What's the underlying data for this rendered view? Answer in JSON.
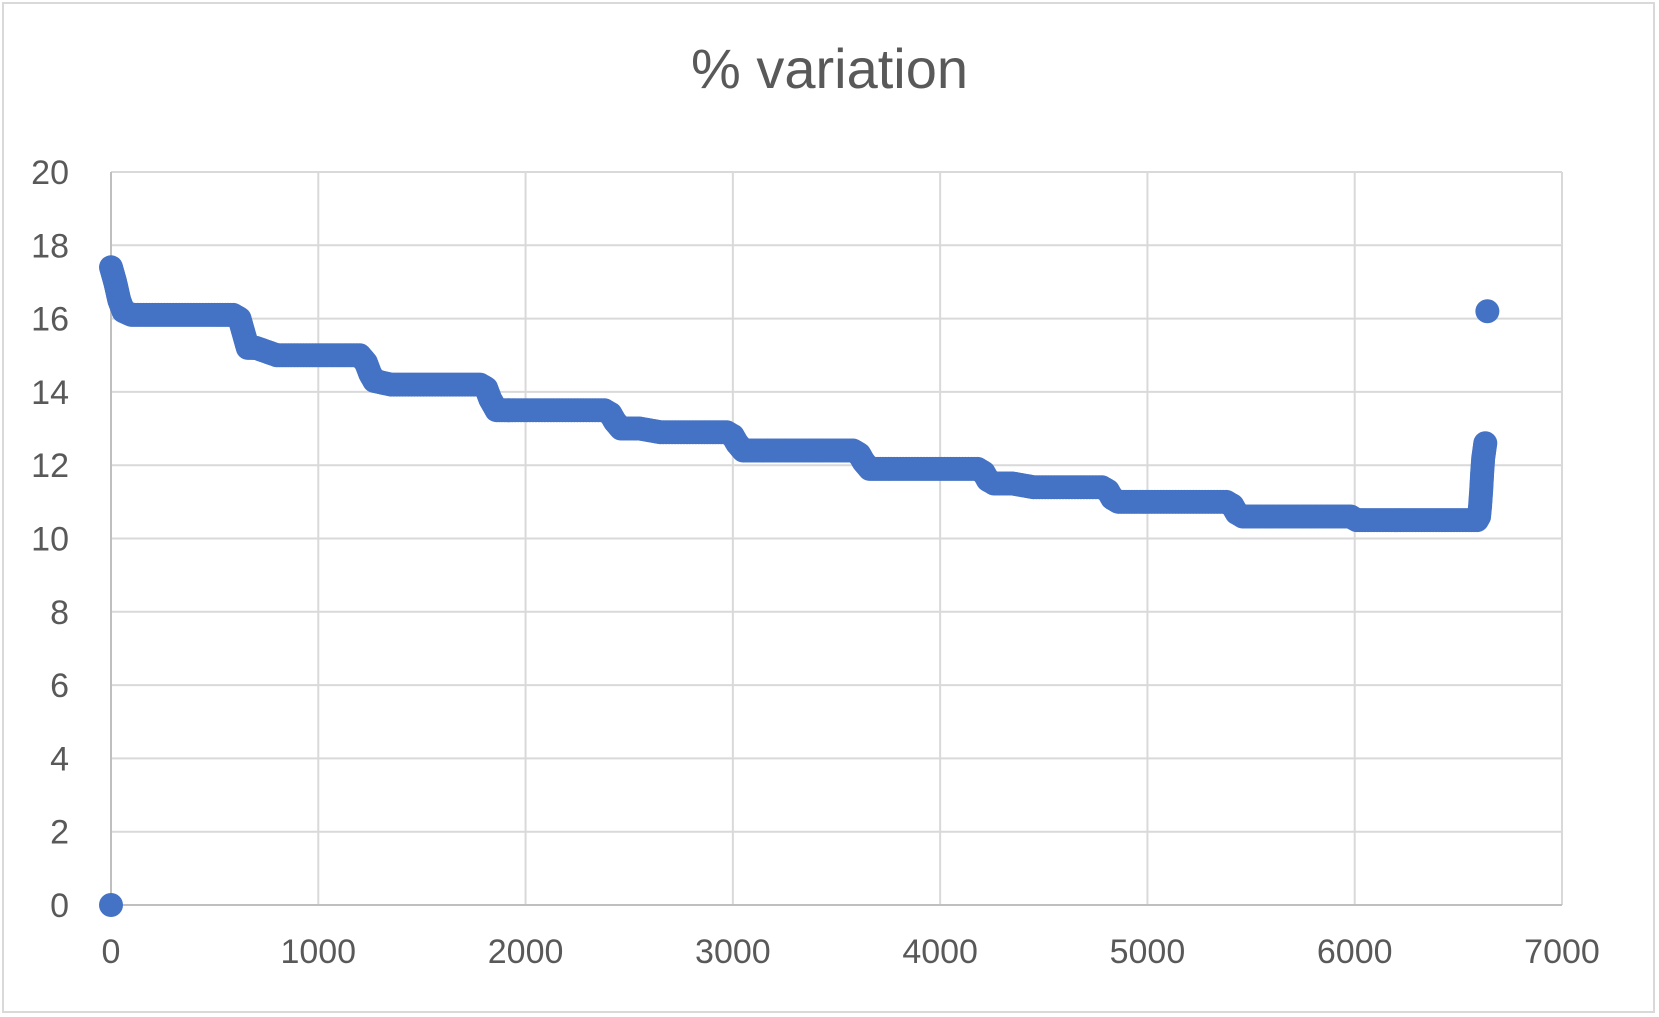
{
  "chart_data": {
    "type": "scatter",
    "title": "% variation",
    "xlabel": "",
    "ylabel": "",
    "xlim": [
      0,
      7000
    ],
    "ylim": [
      0,
      20
    ],
    "x_ticks": [
      0,
      1000,
      2000,
      3000,
      4000,
      5000,
      6000,
      7000
    ],
    "y_ticks": [
      0,
      2,
      4,
      6,
      8,
      10,
      12,
      14,
      16,
      18,
      20
    ],
    "grid": true,
    "legend": "none",
    "marker_color": "#4472C4",
    "series": [
      {
        "description": "dense sequence of points forming a stepwise decreasing band",
        "points": [
          [
            0,
            0
          ],
          [
            0,
            17.4
          ],
          [
            20,
            17.0
          ],
          [
            40,
            16.5
          ],
          [
            60,
            16.2
          ],
          [
            100,
            16.1
          ],
          [
            200,
            16.1
          ],
          [
            300,
            16.1
          ],
          [
            400,
            16.1
          ],
          [
            500,
            16.1
          ],
          [
            590,
            16.1
          ],
          [
            620,
            16.0
          ],
          [
            640,
            15.6
          ],
          [
            660,
            15.2
          ],
          [
            700,
            15.2
          ],
          [
            800,
            15.0
          ],
          [
            900,
            15.0
          ],
          [
            1000,
            15.0
          ],
          [
            1100,
            15.0
          ],
          [
            1200,
            15.0
          ],
          [
            1230,
            14.8
          ],
          [
            1250,
            14.5
          ],
          [
            1270,
            14.3
          ],
          [
            1350,
            14.2
          ],
          [
            1450,
            14.2
          ],
          [
            1550,
            14.2
          ],
          [
            1650,
            14.2
          ],
          [
            1780,
            14.2
          ],
          [
            1810,
            14.1
          ],
          [
            1830,
            13.8
          ],
          [
            1860,
            13.5
          ],
          [
            1950,
            13.5
          ],
          [
            2050,
            13.5
          ],
          [
            2150,
            13.5
          ],
          [
            2250,
            13.5
          ],
          [
            2380,
            13.5
          ],
          [
            2410,
            13.4
          ],
          [
            2430,
            13.2
          ],
          [
            2460,
            13.0
          ],
          [
            2550,
            13.0
          ],
          [
            2650,
            12.9
          ],
          [
            2750,
            12.9
          ],
          [
            2850,
            12.9
          ],
          [
            2970,
            12.9
          ],
          [
            3000,
            12.8
          ],
          [
            3020,
            12.6
          ],
          [
            3050,
            12.4
          ],
          [
            3150,
            12.4
          ],
          [
            3250,
            12.4
          ],
          [
            3350,
            12.4
          ],
          [
            3450,
            12.4
          ],
          [
            3580,
            12.4
          ],
          [
            3610,
            12.3
          ],
          [
            3630,
            12.1
          ],
          [
            3660,
            11.9
          ],
          [
            3750,
            11.9
          ],
          [
            3850,
            11.9
          ],
          [
            3950,
            11.9
          ],
          [
            4050,
            11.9
          ],
          [
            4180,
            11.9
          ],
          [
            4210,
            11.8
          ],
          [
            4230,
            11.6
          ],
          [
            4260,
            11.5
          ],
          [
            4350,
            11.5
          ],
          [
            4450,
            11.4
          ],
          [
            4550,
            11.4
          ],
          [
            4650,
            11.4
          ],
          [
            4780,
            11.4
          ],
          [
            4810,
            11.3
          ],
          [
            4830,
            11.1
          ],
          [
            4860,
            11.0
          ],
          [
            4950,
            11.0
          ],
          [
            5050,
            11.0
          ],
          [
            5150,
            11.0
          ],
          [
            5250,
            11.0
          ],
          [
            5380,
            11.0
          ],
          [
            5410,
            10.9
          ],
          [
            5430,
            10.7
          ],
          [
            5460,
            10.6
          ],
          [
            5550,
            10.6
          ],
          [
            5650,
            10.6
          ],
          [
            5750,
            10.6
          ],
          [
            5850,
            10.6
          ],
          [
            5980,
            10.6
          ],
          [
            6010,
            10.5
          ],
          [
            6050,
            10.5
          ],
          [
            6150,
            10.5
          ],
          [
            6250,
            10.5
          ],
          [
            6350,
            10.5
          ],
          [
            6450,
            10.5
          ],
          [
            6550,
            10.5
          ],
          [
            6590,
            10.5
          ],
          [
            6600,
            10.6
          ],
          [
            6605,
            10.9
          ],
          [
            6610,
            11.3
          ],
          [
            6615,
            11.8
          ],
          [
            6620,
            12.2
          ],
          [
            6630,
            12.6
          ],
          [
            6640,
            16.2
          ]
        ]
      }
    ]
  }
}
